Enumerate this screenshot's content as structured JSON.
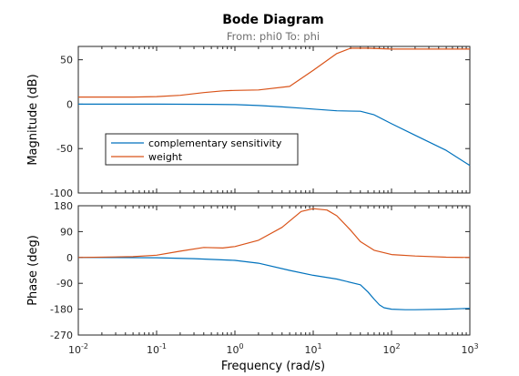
{
  "chart_data": {
    "type": "line",
    "title": "Bode Diagram",
    "subtitle": "From: phi0  To: phi",
    "xlabel": "Frequency  (rad/s)",
    "xscale": "log",
    "xlim": [
      0.01,
      1000
    ],
    "xtick_labels": [
      {
        "base": "10",
        "exp": "-2"
      },
      {
        "base": "10",
        "exp": "-1"
      },
      {
        "base": "10",
        "exp": "0"
      },
      {
        "base": "10",
        "exp": "1"
      },
      {
        "base": "10",
        "exp": "2"
      },
      {
        "base": "10",
        "exp": "3"
      }
    ],
    "colors": {
      "complementary sensitivity": "#0072bd",
      "weight": "#d95319"
    },
    "legend": {
      "placement": "inside-left",
      "entries": [
        "complementary sensitivity",
        "weight"
      ]
    },
    "panels": [
      {
        "ylabel": "Magnitude (dB)",
        "ylim": [
          -100,
          65
        ],
        "ytick_values": [
          50,
          0,
          -50,
          -100
        ],
        "ytick_labels": [
          "50",
          "0",
          "-50",
          "-100"
        ],
        "series": [
          {
            "name": "complementary sensitivity",
            "x": [
              0.01,
              0.1,
              0.5,
              1,
              2,
              4,
              7,
              10,
              20,
              40,
              60,
              100,
              200,
              500,
              1000
            ],
            "values": [
              0,
              0,
              -0.2,
              -0.5,
              -1.5,
              -3,
              -4.5,
              -5.5,
              -7.5,
              -8,
              -12,
              -22,
              -35,
              -52,
              -69
            ]
          },
          {
            "name": "weight",
            "x": [
              0.01,
              0.05,
              0.1,
              0.2,
              0.4,
              0.7,
              1,
              2,
              5,
              10,
              20,
              30,
              50,
              100,
              1000
            ],
            "values": [
              8,
              8,
              8.5,
              10,
              13,
              15,
              15.5,
              16,
              20,
              38,
              57,
              63,
              63,
              62,
              62
            ]
          }
        ]
      },
      {
        "ylabel": "Phase (deg)",
        "ylim": [
          -270,
          180
        ],
        "ytick_values": [
          180,
          90,
          0,
          -90,
          -180,
          -270
        ],
        "ytick_labels": [
          "180",
          "90",
          "0",
          "-90",
          "-180",
          "-270"
        ],
        "series": [
          {
            "name": "complementary sensitivity",
            "x": [
              0.01,
              0.1,
              0.3,
              1,
              2,
              5,
              10,
              20,
              40,
              50,
              60,
              70,
              80,
              100,
              150,
              200,
              500,
              1000
            ],
            "values": [
              0,
              -1,
              -4,
              -10,
              -20,
              -45,
              -62,
              -75,
              -95,
              -120,
              -145,
              -165,
              -175,
              -180,
              -182,
              -182,
              -180,
              -177
            ]
          },
          {
            "name": "weight",
            "x": [
              0.01,
              0.05,
              0.1,
              0.2,
              0.4,
              0.7,
              1,
              2,
              4,
              7,
              10,
              15,
              20,
              30,
              40,
              60,
              100,
              200,
              500,
              1000
            ],
            "values": [
              0,
              3,
              8,
              22,
              35,
              33,
              38,
              60,
              105,
              160,
              170,
              165,
              145,
              95,
              55,
              25,
              10,
              5,
              1,
              0
            ]
          }
        ]
      }
    ]
  }
}
